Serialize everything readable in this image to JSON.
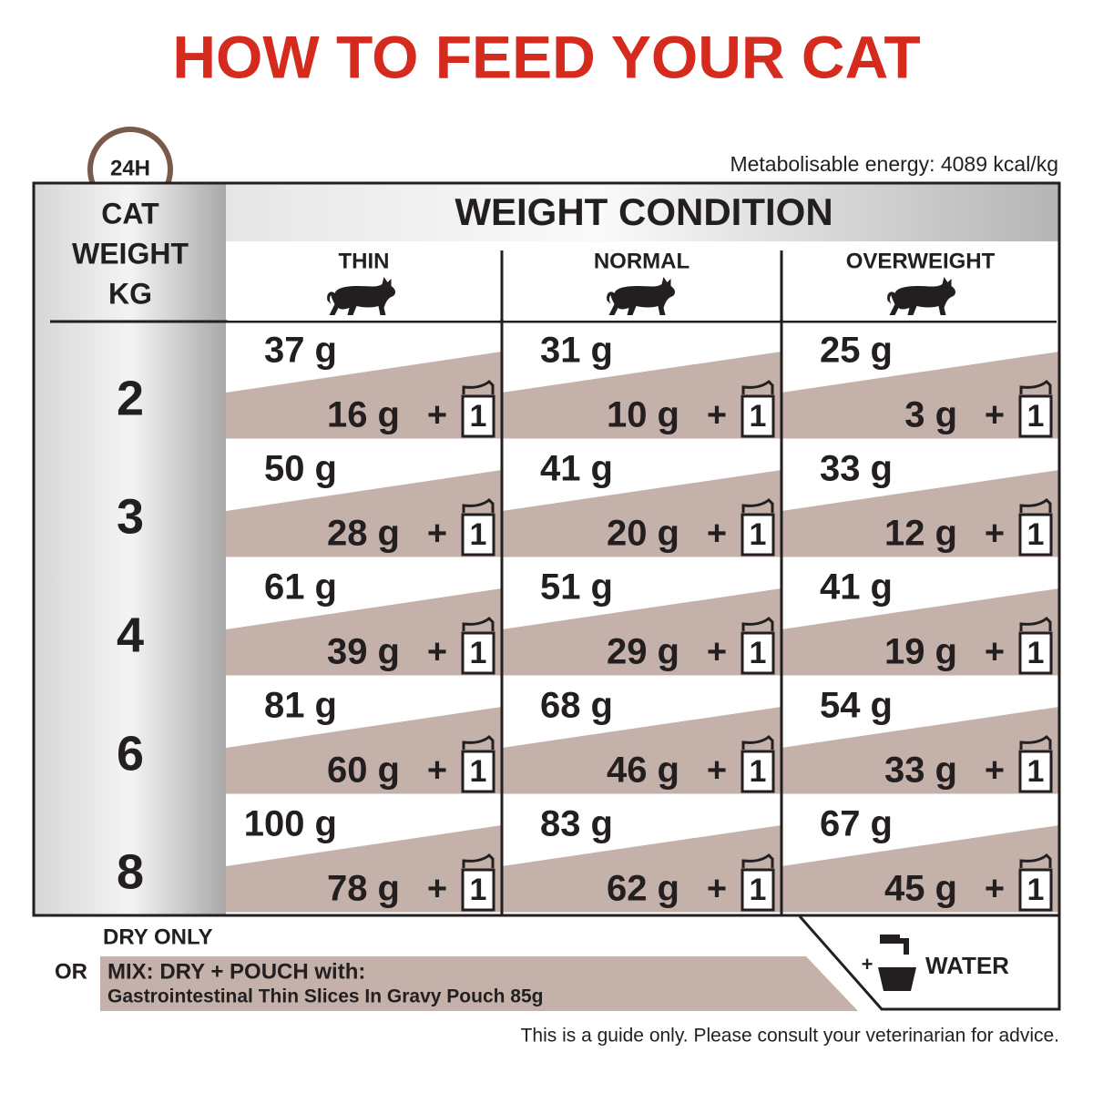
{
  "header": {
    "title": "HOW TO FEED YOUR CAT",
    "clock": "24H",
    "energy": "Metabolisable energy: 4089 kcal/kg"
  },
  "table": {
    "weight_header": [
      "CAT",
      "WEIGHT",
      "KG"
    ],
    "condition_header": "WEIGHT CONDITION",
    "columns": [
      "THIN",
      "NORMAL",
      "OVERWEIGHT"
    ],
    "plus": "+",
    "pouch": "1",
    "rows": [
      {
        "weight": "2",
        "cells": [
          {
            "dry": "37 g",
            "mix": "16 g"
          },
          {
            "dry": "31 g",
            "mix": "10 g"
          },
          {
            "dry": "25 g",
            "mix": "3 g"
          }
        ]
      },
      {
        "weight": "3",
        "cells": [
          {
            "dry": "50 g",
            "mix": "28 g"
          },
          {
            "dry": "41 g",
            "mix": "20 g"
          },
          {
            "dry": "33 g",
            "mix": "12 g"
          }
        ]
      },
      {
        "weight": "4",
        "cells": [
          {
            "dry": "61 g",
            "mix": "39 g"
          },
          {
            "dry": "51 g",
            "mix": "29 g"
          },
          {
            "dry": "41 g",
            "mix": "19 g"
          }
        ]
      },
      {
        "weight": "6",
        "cells": [
          {
            "dry": "81 g",
            "mix": "60 g"
          },
          {
            "dry": "68 g",
            "mix": "46 g"
          },
          {
            "dry": "54 g",
            "mix": "33 g"
          }
        ]
      },
      {
        "weight": "8",
        "cells": [
          {
            "dry": "100 g",
            "mix": "78 g"
          },
          {
            "dry": "83 g",
            "mix": "62 g"
          },
          {
            "dry": "67 g",
            "mix": "45 g"
          }
        ]
      }
    ]
  },
  "footer": {
    "dry_only": "DRY ONLY",
    "or": "OR",
    "mix": "MIX: DRY + POUCH with:",
    "product": "Gastrointestinal Thin Slices In Gravy Pouch 85g",
    "water_plus": "+",
    "water": "WATER",
    "disclaimer": "This is a guide only. Please consult your veterinarian for advice."
  }
}
